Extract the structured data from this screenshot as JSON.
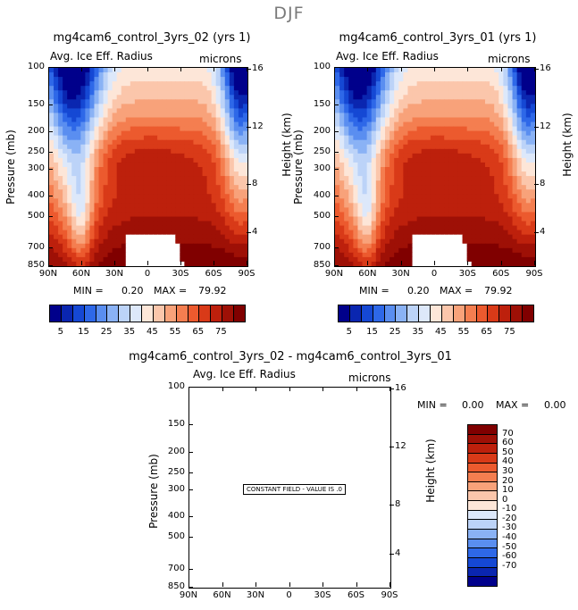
{
  "title": "DJF",
  "palette": {
    "blue": [
      "#00008b",
      "#0a26b0",
      "#1548d4",
      "#2e68e8",
      "#5a8ef0",
      "#8ab2f5",
      "#bcd3f8",
      "#dde8fa"
    ],
    "red": [
      "#fde6d8",
      "#fbc6ab",
      "#f8a27a",
      "#f47e50",
      "#ec5a2e",
      "#d93a18",
      "#bd200c",
      "#9e1006",
      "#800000"
    ]
  },
  "panels": [
    {
      "title": "mg4cam6_control_3yrs_02 (yrs 1)",
      "variable": "Avg. Ice Eff. Radius",
      "units": "microns",
      "y_label": "Pressure (mb)",
      "y2_label": "Height (km)",
      "min_label": "MIN =",
      "min_value": "0.20",
      "max_label": "MAX =",
      "max_value": "79.92"
    },
    {
      "title": "mg4cam6_control_3yrs_01 (yrs 1)",
      "variable": "Avg. Ice Eff. Radius",
      "units": "microns",
      "y_label": "Pressure (mb)",
      "y2_label": "Height (km)",
      "min_label": "MIN =",
      "min_value": "0.20",
      "max_label": "MAX =",
      "max_value": "79.92"
    },
    {
      "title": "mg4cam6_control_3yrs_02 - mg4cam6_control_3yrs_01",
      "variable": "Avg. Ice Eff. Radius",
      "units": "microns",
      "y_label": "Pressure (mb)",
      "y2_label": "Height (km)",
      "min_label": "MIN =",
      "min_value": "0.00",
      "max_label": "MAX =",
      "max_value": "0.00",
      "note": "CONSTANT FIELD - VALUE IS .0"
    }
  ],
  "colorbar_top": {
    "labels": [
      "5",
      "15",
      "25",
      "35",
      "45",
      "55",
      "65",
      "75"
    ]
  },
  "colorbar_diff": {
    "labels": [
      "70",
      "60",
      "50",
      "40",
      "30",
      "20",
      "10",
      "0",
      "-10",
      "-20",
      "-30",
      "-40",
      "-50",
      "-60",
      "-70"
    ]
  },
  "chart_data": [
    {
      "type": "heatmap",
      "title": "mg4cam6_control_3yrs_02 (yrs 1)",
      "xlabel": "",
      "ylabel": "Pressure (mb)",
      "y2label": "Height (km)",
      "x_ticks": [
        "90N",
        "60N",
        "30N",
        "0",
        "30S",
        "60S",
        "90S"
      ],
      "y_ticks": [
        "100",
        "150",
        "200",
        "250",
        "300",
        "400",
        "500",
        "700",
        "850"
      ],
      "y2_ticks": [
        "16",
        "12",
        "8",
        "4"
      ],
      "zmin": 0.2,
      "zmax": 79.92,
      "units": "microns"
    },
    {
      "type": "heatmap",
      "title": "mg4cam6_control_3yrs_01 (yrs 1)",
      "xlabel": "",
      "ylabel": "Pressure (mb)",
      "y2label": "Height (km)",
      "x_ticks": [
        "90N",
        "60N",
        "30N",
        "0",
        "30S",
        "60S",
        "90S"
      ],
      "y_ticks": [
        "100",
        "150",
        "200",
        "250",
        "300",
        "400",
        "500",
        "700",
        "850"
      ],
      "y2_ticks": [
        "16",
        "12",
        "8",
        "4"
      ],
      "zmin": 0.2,
      "zmax": 79.92,
      "units": "microns"
    },
    {
      "type": "heatmap",
      "title": "mg4cam6_control_3yrs_02 - mg4cam6_control_3yrs_01",
      "xlabel": "",
      "ylabel": "Pressure (mb)",
      "y2label": "Height (km)",
      "x_ticks": [
        "90N",
        "60N",
        "30N",
        "0",
        "30S",
        "60S",
        "90S"
      ],
      "y_ticks": [
        "100",
        "150",
        "200",
        "250",
        "300",
        "400",
        "500",
        "700",
        "850"
      ],
      "y2_ticks": [
        "16",
        "12",
        "8",
        "4"
      ],
      "zmin": 0.0,
      "zmax": 0.0,
      "units": "microns"
    }
  ]
}
